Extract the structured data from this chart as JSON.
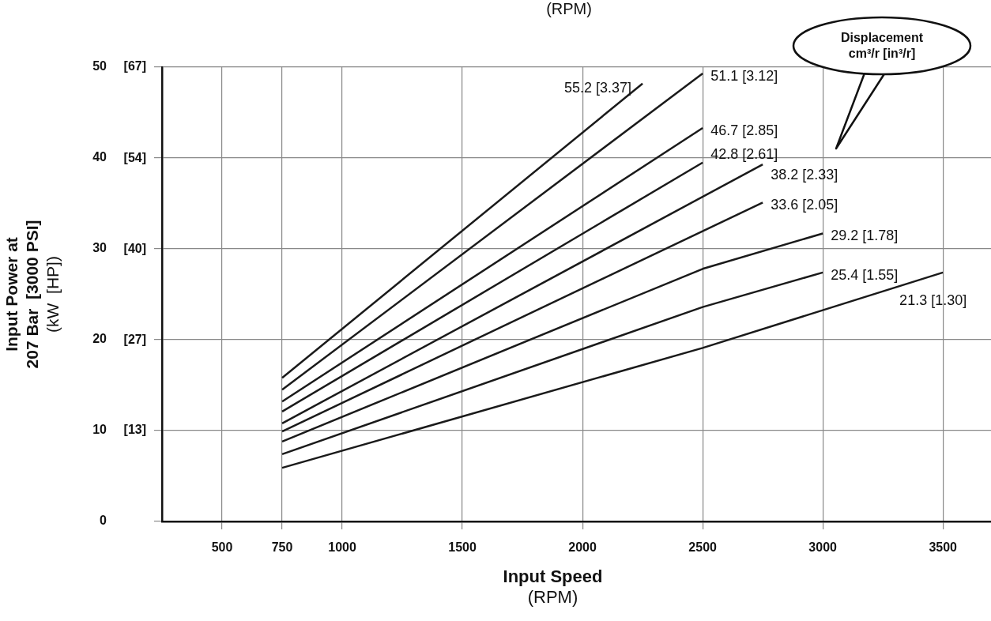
{
  "chart_data": {
    "type": "line",
    "title": "(RPM)",
    "xlabel": "Input Speed\n(RPM)",
    "ylabel": "Input Power at\n207 Bar  [3000 PSI]\n(kW  [HP])",
    "xlim": [
      250,
      3700
    ],
    "xticks": [
      500,
      750,
      1000,
      1500,
      2000,
      2500,
      3000,
      3500
    ],
    "ylim": [
      0,
      50
    ],
    "yticks": [
      0,
      10,
      20,
      30,
      40,
      50
    ],
    "y2lim": [
      0,
      67.05
    ],
    "y2ticks": [
      {
        "value": 13.4,
        "label": "[13]"
      },
      {
        "value": 26.8,
        "label": "[27]"
      },
      {
        "value": 40.2,
        "label": "[40]"
      },
      {
        "value": 53.6,
        "label": "[54]"
      },
      {
        "value": 67.05,
        "label": "[67]"
      }
    ],
    "grid": true,
    "legend": false,
    "marker": "none",
    "line_style": "solid",
    "series": [
      {
        "name": "55.2 [3.37]",
        "color": "#1a1a1a",
        "x": [
          750,
          2250
        ],
        "values": [
          15.8,
          48.2
        ]
      },
      {
        "name": "51.1 [3.12]",
        "color": "#1a1a1a",
        "x": [
          750,
          2500
        ],
        "values": [
          14.5,
          49.3
        ]
      },
      {
        "name": "46.7 [2.85]",
        "color": "#1a1a1a",
        "x": [
          750,
          2500
        ],
        "values": [
          13.2,
          43.3
        ]
      },
      {
        "name": "42.8 [2.61]",
        "color": "#1a1a1a",
        "x": [
          750,
          2500
        ],
        "values": [
          12.1,
          39.5
        ]
      },
      {
        "name": "38.2 [2.33]",
        "color": "#1a1a1a",
        "x": [
          750,
          2750
        ],
        "values": [
          10.8,
          39.3
        ]
      },
      {
        "name": "33.6 [2.05]",
        "color": "#1a1a1a",
        "x": [
          750,
          2750
        ],
        "values": [
          9.9,
          35.1
        ]
      },
      {
        "name": "29.2 [1.78]",
        "color": "#1a1a1a",
        "x": [
          750,
          2500,
          3000
        ],
        "values": [
          8.8,
          27.8,
          31.7
        ]
      },
      {
        "name": "25.4 [1.55]",
        "color": "#1a1a1a",
        "x": [
          750,
          2500,
          3000
        ],
        "values": [
          7.4,
          23.6,
          27.4
        ]
      },
      {
        "name": "21.3 [1.30]",
        "color": "#1a1a1a",
        "x": [
          750,
          2500,
          3500
        ],
        "values": [
          5.9,
          19.1,
          27.4
        ]
      }
    ],
    "annotations": [
      "Displacement cm³/r [in³/r]"
    ]
  }
}
